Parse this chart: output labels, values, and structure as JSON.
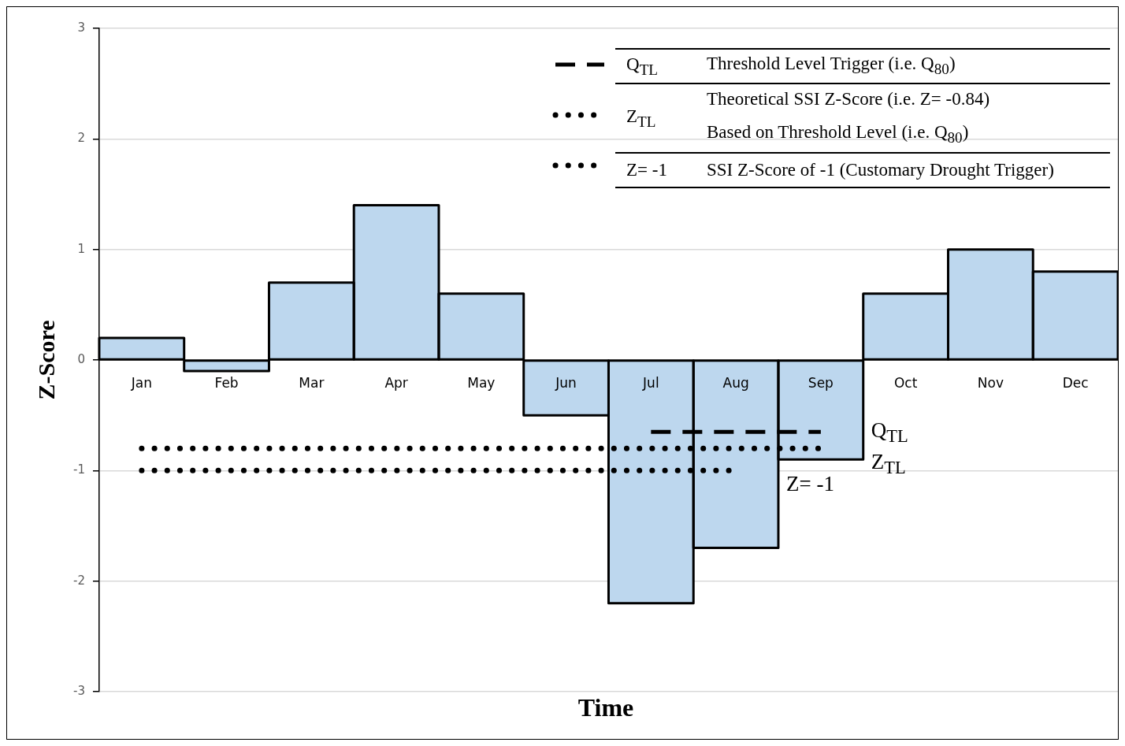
{
  "chart_data": {
    "type": "bar",
    "xlabel": "Time",
    "ylabel": "Z-Score",
    "categories": [
      "Jan",
      "Feb",
      "Mar",
      "Apr",
      "May",
      "Jun",
      "Jul",
      "Aug",
      "Sep",
      "Oct",
      "Nov",
      "Dec"
    ],
    "series": [
      {
        "color": "#bdd7ee",
        "values": [
          0.2,
          -0.1,
          0.7,
          1.4,
          0.6,
          -0.5,
          -2.2,
          -1.7,
          -0.9,
          0.6,
          1.0,
          0.8
        ]
      },
      {
        "type": "line",
        "name": "Q$_{TL}$",
        "color": "#000000",
        "line_style": "dashed",
        "values": [
          null,
          null,
          null,
          null,
          null,
          null,
          -0.65,
          -0.65,
          -0.65,
          null,
          null,
          null
        ]
      },
      {
        "type": "line",
        "name": "Z$_{TL}$",
        "color": "#000000",
        "line_style": "dotted",
        "values": [
          -0.8,
          -0.8,
          -0.8,
          -0.8,
          -0.8,
          -0.8,
          -0.8,
          -0.8,
          -0.8,
          null,
          null,
          null
        ]
      },
      {
        "type": "line",
        "name": "Z= -1",
        "color": "#000000",
        "line_style": "dotted",
        "values": [
          -1,
          -1,
          -1,
          -1,
          -1,
          -1,
          -1,
          -1,
          null,
          null,
          null,
          null
        ]
      }
    ],
    "annotations": [
      "Threshold Level Trigger (i.e. Q$_{80}$)",
      "Theoretical SSI Z-Score (i.e. Z= -0.84)\nBased on Threshold Level (i.e. Q$_{80}$)",
      "SSI Z-Score of -1 (Customary Drought Trigger)"
    ],
    "ylim": [
      -3,
      3
    ],
    "yticks": [
      -3,
      -2,
      -1,
      0,
      1,
      2,
      3
    ],
    "grid": "y",
    "legend": "top right",
    "marker": "none"
  }
}
